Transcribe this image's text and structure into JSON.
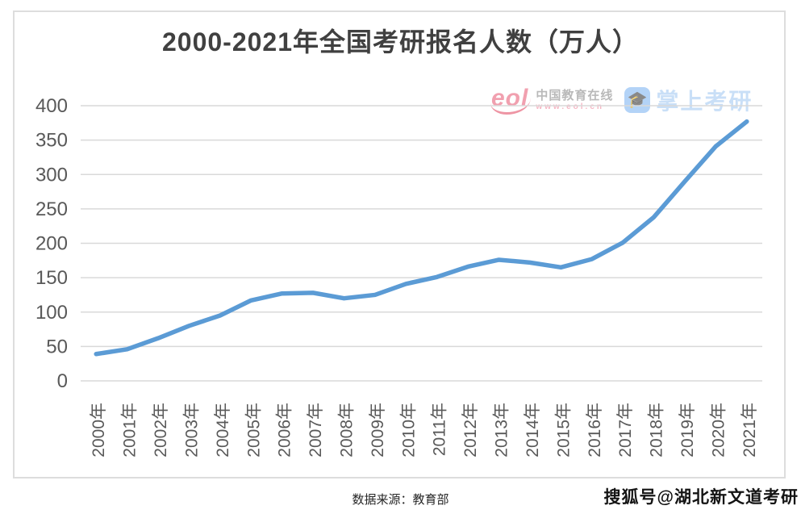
{
  "title": "2000-2021年全国考研报名人数（万人）",
  "chart_data": {
    "type": "line",
    "title": "2000-2021年全国考研报名人数（万人）",
    "x": [
      "2000年",
      "2001年",
      "2002年",
      "2003年",
      "2004年",
      "2005年",
      "2006年",
      "2007年",
      "2008年",
      "2009年",
      "2010年",
      "2011年",
      "2012年",
      "2013年",
      "2014年",
      "2015年",
      "2016年",
      "2017年",
      "2018年",
      "2019年",
      "2020年",
      "2021年"
    ],
    "series": [
      {
        "name": "考研报名人数(万人)",
        "values": [
          39,
          46,
          62,
          80,
          95,
          117,
          127,
          128,
          120,
          125,
          141,
          151,
          166,
          176,
          172,
          165,
          177,
          201,
          238,
          290,
          341,
          377
        ]
      }
    ],
    "ylim": [
      0,
      400
    ],
    "y_ticks": [
      0,
      50,
      100,
      150,
      200,
      250,
      300,
      350,
      400
    ],
    "grid": true,
    "legend": "none",
    "line_color": "#5b9bd5",
    "gridline_color": "#d9d9d9",
    "axis_text_color": "#595959"
  },
  "watermarks": {
    "eol": {
      "logo_text": "eol",
      "name": "中国教育在线",
      "url": "www.eol.cn"
    },
    "zsky": {
      "icon": "graduation-cap",
      "icon_glyph": "🎓",
      "name": "掌上考研"
    }
  },
  "footer": {
    "source": "数据来源：教育部",
    "sohu": "搜狐号@湖北新文道考研"
  }
}
